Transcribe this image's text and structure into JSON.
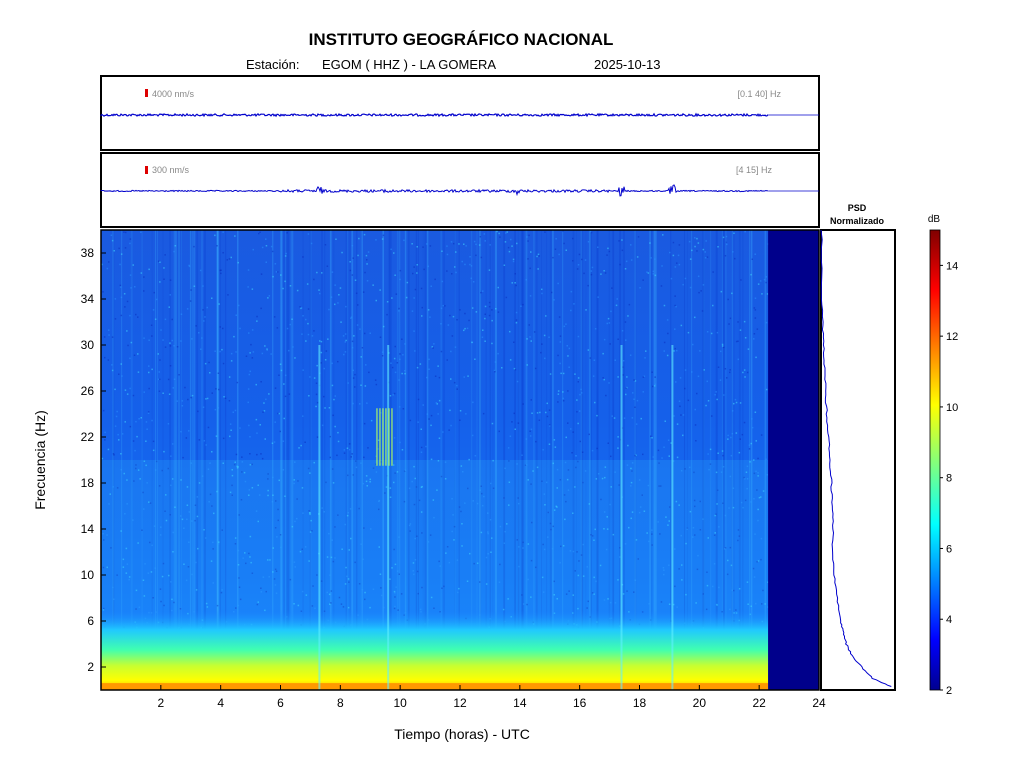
{
  "header": {
    "title": "INSTITUTO GEOGRÁFICO NACIONAL",
    "station_prefix": "Estación:",
    "station": "EGOM ( HHZ ) - LA GOMERA",
    "date": "2025-10-13"
  },
  "colors": {
    "trace": "#0000cc",
    "scale_marker": "#dd0000",
    "frame": "#000000",
    "no_data": "#00008b",
    "label_grey": "#888888"
  },
  "chart_data": [
    {
      "type": "line",
      "name": "trace-broadband",
      "scale_label": "4000 nm/s",
      "band_label": "[0.1 40] Hz",
      "xlim": [
        0,
        24
      ],
      "data_end_hour": 22.3,
      "amplitude_profile": "flat"
    },
    {
      "type": "line",
      "name": "trace-filtered",
      "scale_label": "300 nm/s",
      "band_label": "[4 15] Hz",
      "xlim": [
        0,
        24
      ],
      "data_end_hour": 22.3,
      "bursts": [
        {
          "x": 7.3,
          "amplitude": 0.35
        },
        {
          "x": 9.6,
          "amplitude": 0.18
        },
        {
          "x": 13.9,
          "amplitude": 0.22
        },
        {
          "x": 17.4,
          "amplitude": 0.55
        },
        {
          "x": 19.1,
          "amplitude": 0.6
        }
      ]
    },
    {
      "type": "heatmap",
      "name": "spectrogram",
      "xlabel": "Tiempo (horas) - UTC",
      "ylabel": "Frecuencia  (Hz)",
      "xlim": [
        0,
        24
      ],
      "ylim": [
        0,
        40
      ],
      "xticks": [
        "2",
        "4",
        "6",
        "8",
        "10",
        "12",
        "14",
        "16",
        "18",
        "20",
        "22",
        "24"
      ],
      "yticks": [
        "2",
        "6",
        "10",
        "14",
        "18",
        "22",
        "26",
        "30",
        "34",
        "38"
      ],
      "xtick_values": [
        2,
        4,
        6,
        8,
        10,
        12,
        14,
        16,
        18,
        20,
        22,
        24
      ],
      "ytick_values": [
        2,
        6,
        10,
        14,
        18,
        22,
        26,
        30,
        34,
        38
      ],
      "data_end_hour": 22.3,
      "vertical_events_hours": [
        7.3,
        9.6,
        17.4,
        19.1
      ],
      "low_freq_band_hz": [
        0,
        3
      ]
    },
    {
      "type": "line",
      "name": "psd",
      "title_line1": "PSD",
      "title_line2": "Normalizado",
      "x_range": [
        0,
        1
      ],
      "y_range_hz": [
        0,
        40
      ],
      "points": [
        {
          "f": 0.3,
          "v": 0.95
        },
        {
          "f": 1,
          "v": 0.7
        },
        {
          "f": 2,
          "v": 0.55
        },
        {
          "f": 3,
          "v": 0.42
        },
        {
          "f": 4,
          "v": 0.34
        },
        {
          "f": 5,
          "v": 0.3
        },
        {
          "f": 6,
          "v": 0.27
        },
        {
          "f": 8,
          "v": 0.22
        },
        {
          "f": 10,
          "v": 0.18
        },
        {
          "f": 12,
          "v": 0.16
        },
        {
          "f": 14,
          "v": 0.16
        },
        {
          "f": 16,
          "v": 0.15
        },
        {
          "f": 18,
          "v": 0.14
        },
        {
          "f": 20,
          "v": 0.12
        },
        {
          "f": 22,
          "v": 0.1
        },
        {
          "f": 24,
          "v": 0.08
        },
        {
          "f": 26,
          "v": 0.06
        },
        {
          "f": 28,
          "v": 0.05
        },
        {
          "f": 30,
          "v": 0.03
        },
        {
          "f": 32,
          "v": 0.02
        },
        {
          "f": 35,
          "v": 0.01
        },
        {
          "f": 40,
          "v": 0.005
        }
      ]
    },
    {
      "type": "colorbar",
      "name": "colorbar",
      "unit": "dB",
      "range": [
        2,
        15
      ],
      "ticks": [
        "2",
        "4",
        "6",
        "8",
        "10",
        "12",
        "14"
      ],
      "tick_values": [
        2,
        4,
        6,
        8,
        10,
        12,
        14
      ]
    }
  ]
}
